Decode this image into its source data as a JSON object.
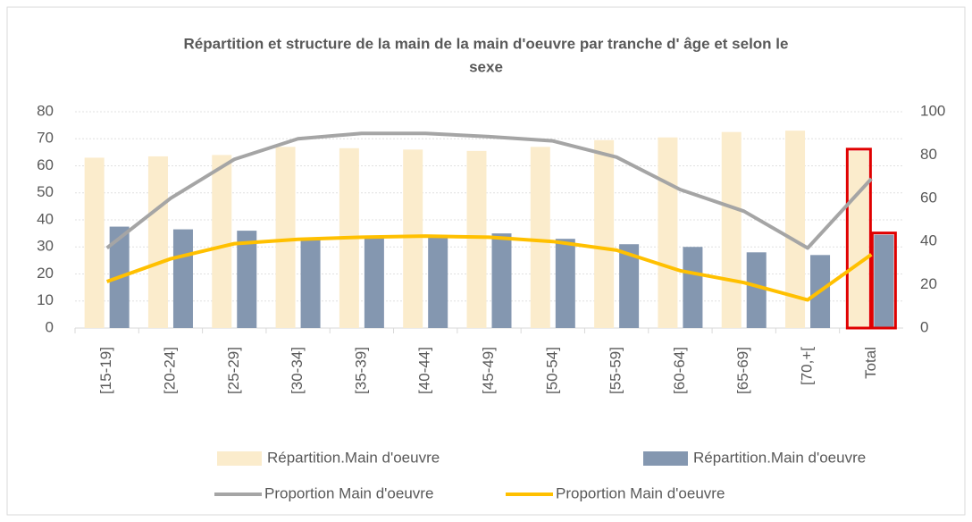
{
  "chart_data": {
    "type": "bar",
    "title": "Répartition et structure de la main de la main d'oeuvre par tranche d' âge et selon le sexe",
    "categories": [
      "[15-19]",
      "[20-24]",
      "[25-29]",
      "[30-34]",
      "[35-39]",
      "[40-44]",
      "[45-49]",
      "[50-54]",
      "[55-59]",
      "[60-64]",
      "[65-69]",
      "[70,+[",
      "Total"
    ],
    "series": [
      {
        "name": "Répartition.Main d'oeuvre",
        "type": "bar",
        "color": "#fbeccc",
        "values": [
          63,
          63.5,
          64,
          67,
          66.5,
          66,
          65.5,
          67,
          69.5,
          70.5,
          72.5,
          73,
          65.5
        ]
      },
      {
        "name": "Répartition.Main d'oeuvre",
        "type": "bar",
        "color": "#8497b0",
        "values": [
          37.5,
          36.5,
          36,
          33,
          33.5,
          34,
          35,
          33,
          31,
          30,
          28,
          27,
          34.5
        ]
      },
      {
        "name": "Proportion Main d'oeuvre",
        "type": "line",
        "axis": "y2",
        "color": "#a5a5a5",
        "values": [
          37,
          60,
          78,
          87.5,
          90,
          90,
          88.5,
          86.5,
          79,
          64,
          54,
          37,
          69
        ]
      },
      {
        "name": "Proportion Main d'oeuvre",
        "type": "line",
        "axis": "y2",
        "color": "#ffc000",
        "values": [
          21.5,
          32,
          39,
          41,
          42,
          42.5,
          42,
          40,
          36,
          26.5,
          21,
          13,
          34
        ]
      }
    ],
    "ylim": [
      0,
      80
    ],
    "yticks": [
      0,
      10,
      20,
      30,
      40,
      50,
      60,
      70,
      80
    ],
    "y2lim": [
      0,
      100
    ],
    "y2ticks": [
      0,
      20,
      40,
      60,
      80,
      100
    ],
    "grid": true,
    "legend": "bottom"
  }
}
